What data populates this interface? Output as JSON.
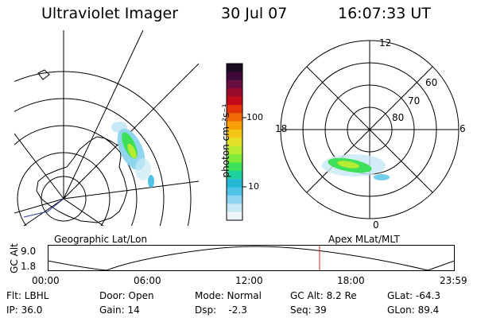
{
  "header": {
    "instrument": "Ultraviolet Imager",
    "date": "30 Jul 07",
    "time": "16:07:33 UT"
  },
  "colorbar": {
    "label": "photon cm⁻²s⁻¹",
    "ticks": [
      "100",
      "10"
    ],
    "colors": [
      "#1a0b1f",
      "#3d0a3a",
      "#6a0e3f",
      "#9a0c2c",
      "#c40a19",
      "#e3350b",
      "#f06a06",
      "#f99f08",
      "#f5c518",
      "#e4e12a",
      "#b8ec33",
      "#7fea3a",
      "#3ee05a",
      "#1ed1a0",
      "#25b8d6",
      "#4fc2e6",
      "#8fd5ef",
      "#c7e8f5",
      "#eef5f8"
    ]
  },
  "panels": {
    "left_label": "Geographic Lat/Lon",
    "right_label": "Apex MLat/MLT"
  },
  "polar": {
    "mlt_labels": [
      "12",
      "18",
      "6",
      "0"
    ],
    "lat_labels": [
      "60",
      "70",
      "80"
    ]
  },
  "timeline": {
    "ylabel": "GC Alt",
    "yticks": [
      "9.0",
      "1.8"
    ],
    "xticks": [
      "00:00",
      "06:00",
      "12:00",
      "18:00",
      "23:59"
    ],
    "marker_time": "16:07:33"
  },
  "info": {
    "flt": "Flt: LBHL",
    "ip": "IP: 36.0",
    "door": "Door: Open",
    "gain": "Gain: 14",
    "mode": "Mode: Normal",
    "dsp": "Dsp:    -2.3",
    "gcalt": "GC Alt: 8.2 Re",
    "seq": "Seq: 39",
    "glat": "GLat: -64.3",
    "glon": "GLon: 89.4"
  }
}
